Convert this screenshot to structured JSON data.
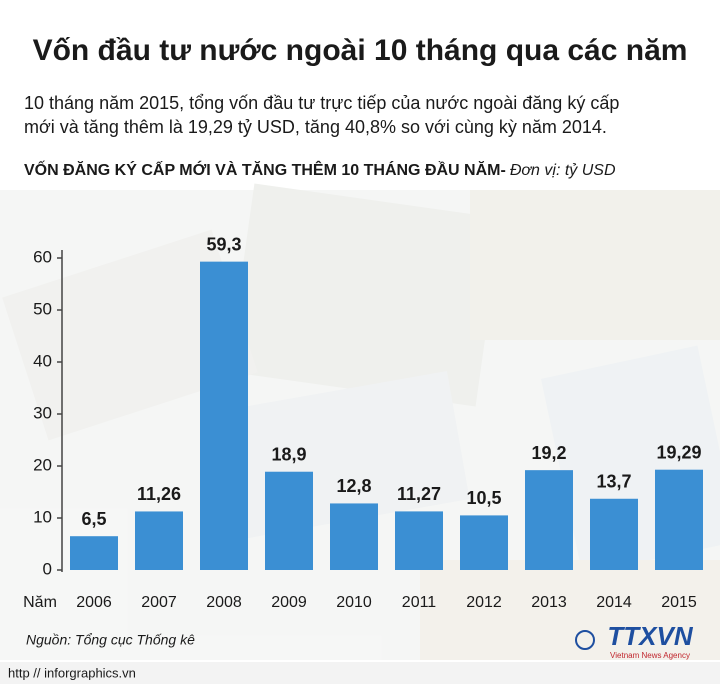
{
  "chart_data": {
    "type": "bar",
    "title": "Vốn đầu tư nước ngoài 10 tháng qua các năm",
    "subtitle": [
      "10 tháng năm 2015, tổng vốn đầu tư trực tiếp của nước ngoài đăng ký cấp",
      "mới và tăng thêm là 19,29 tỷ USD, tăng 40,8% so với cùng kỳ năm 2014."
    ],
    "heading": "VỐN ĐĂNG KÝ CẤP MỚI VÀ TĂNG THÊM 10 THÁNG ĐẦU NĂM-",
    "unit": "Đơn vị: tỷ USD",
    "xlabel": "Năm",
    "categories": [
      "2006",
      "2007",
      "2008",
      "2009",
      "2010",
      "2011",
      "2012",
      "2013",
      "2014",
      "2015"
    ],
    "values": [
      6.5,
      11.26,
      59.3,
      18.9,
      12.8,
      11.27,
      10.5,
      19.2,
      13.7,
      19.29
    ],
    "value_labels": [
      "6,5",
      "11,26",
      "59,3",
      "18,9",
      "12,8",
      "11,27",
      "10,5",
      "19,2",
      "13,7",
      "19,29"
    ],
    "color": "#3b8fd3",
    "ylim": [
      0,
      60
    ],
    "yticks": [
      0,
      10,
      20,
      30,
      40,
      50,
      60
    ],
    "source": "Nguồn: Tổng cục Thống kê"
  },
  "footer": {
    "url": "http // inforgraphics.vn",
    "logo": "TTXVN",
    "agency": "Vietnam News Agency"
  }
}
